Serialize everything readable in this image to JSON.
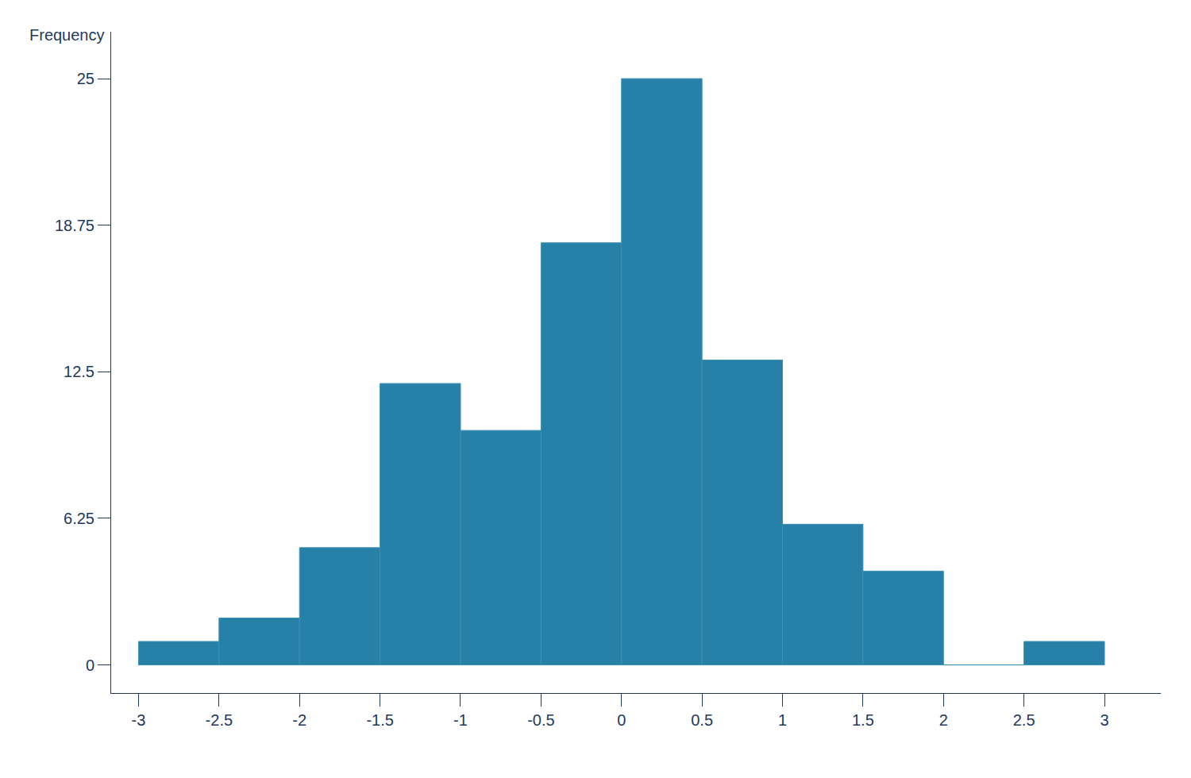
{
  "chart_data": {
    "type": "histogram",
    "y_label": "Frequency",
    "bins": [
      -3,
      -2.5,
      -2,
      -1.5,
      -1,
      -0.5,
      0,
      0.5,
      1,
      1.5,
      2,
      2.5,
      3
    ],
    "values": [
      1,
      2,
      5,
      12,
      10,
      18,
      25,
      13,
      6,
      4,
      0,
      1
    ],
    "color": "#2680a8",
    "xlim": [
      -3.17,
      3.35
    ],
    "xticks": [
      -3,
      -2.5,
      -2,
      -1.5,
      -1,
      -0.5,
      0,
      0.5,
      1,
      1.5,
      2,
      2.5,
      3
    ],
    "ylim": [
      -1.2,
      27
    ],
    "yticks": [
      0,
      6.25,
      12.5,
      18.75,
      25
    ],
    "grid": false
  }
}
